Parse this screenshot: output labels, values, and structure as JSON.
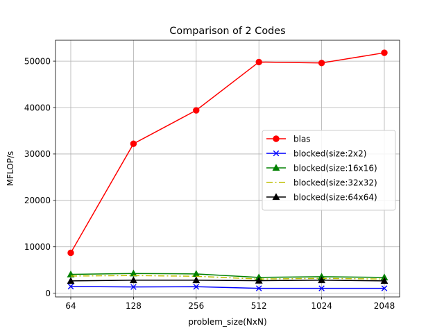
{
  "chart_data": {
    "type": "line",
    "title": "Comparison of 2 Codes",
    "xlabel": "problem_size(NxN)",
    "ylabel": "MFLOP/s",
    "categories": [
      "64",
      "128",
      "256",
      "512",
      "1024",
      "2048"
    ],
    "x_scale": "log2",
    "ylim": [
      -800,
      54500
    ],
    "yticks": [
      0,
      10000,
      20000,
      30000,
      40000,
      50000
    ],
    "grid": true,
    "legend_position": "center-right",
    "series": [
      {
        "name": "blas",
        "values": [
          8700,
          32200,
          39400,
          49800,
          49600,
          51800
        ],
        "color": "#ff0000",
        "marker": "circle",
        "dash": "solid"
      },
      {
        "name": "blocked(size:2x2)",
        "values": [
          1450,
          1350,
          1400,
          1050,
          1050,
          1050
        ],
        "color": "#0000ff",
        "marker": "x",
        "dash": "solid"
      },
      {
        "name": "blocked(size:16x16)",
        "values": [
          4050,
          4250,
          4150,
          3400,
          3550,
          3400
        ],
        "color": "#008000",
        "marker": "triangle",
        "dash": "solid"
      },
      {
        "name": "blocked(size:32x32)",
        "values": [
          3700,
          3800,
          3650,
          3050,
          3200,
          3050
        ],
        "color": "#bfbf00",
        "marker": "none",
        "dash": "dashdot"
      },
      {
        "name": "blocked(size:64x64)",
        "values": [
          2650,
          2800,
          2800,
          2700,
          2800,
          2650
        ],
        "color": "#000000",
        "marker": "triangle",
        "dash": "solid"
      }
    ]
  }
}
